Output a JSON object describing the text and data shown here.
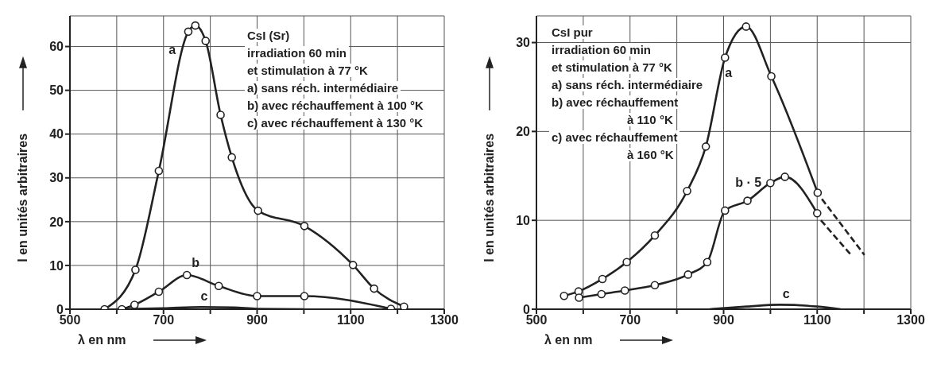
{
  "chart_data": [
    {
      "type": "line",
      "xlabel": "λ en nm",
      "ylabel": "I en unités arbitraires",
      "xlim": [
        500,
        1300
      ],
      "ylim": [
        0,
        67
      ],
      "xticks": [
        500,
        {
          "value": 600,
          "label": null
        },
        700,
        {
          "value": 800,
          "label": null
        },
        900,
        {
          "value": 1000,
          "label": null
        },
        1100,
        {
          "value": 1200,
          "label": null
        },
        1300
      ],
      "yticks": [
        0,
        10,
        20,
        30,
        40,
        50,
        60
      ],
      "grid": true,
      "legend": false,
      "series": [
        {
          "name": "a",
          "color": "#222222",
          "marker": "circle",
          "x": [
            574,
            640,
            690,
            753,
            768,
            790,
            822,
            846,
            902,
            1001,
            1105,
            1150,
            1214
          ],
          "values": [
            0,
            9.0,
            31.6,
            63.4,
            64.8,
            61.3,
            44.4,
            34.7,
            22.5,
            19.0,
            10.1,
            4.7,
            0.6
          ]
        },
        {
          "name": "b",
          "color": "#222222",
          "marker": "circle",
          "x": [
            611,
            638,
            690,
            750,
            818,
            900,
            1001,
            1186
          ],
          "values": [
            0,
            1.0,
            4.0,
            7.8,
            5.3,
            3.0,
            3.0,
            0.1
          ]
        },
        {
          "name": "c",
          "color": "#222222",
          "marker": "none",
          "x": [
            600,
            700,
            780,
            850,
            900,
            1000
          ],
          "values": [
            0,
            0.2,
            0.5,
            0.4,
            0.1,
            0
          ]
        }
      ],
      "annotations": [
        "CsI (Sr)",
        "irradiation 60 min",
        "et stimulation à 77 °K",
        "a) sans réch. intermédiaire",
        "b) avec réchauffement à 100 °K",
        "c) avec réchauffement à 130 °K"
      ]
    },
    {
      "type": "line",
      "xlabel": "λ en nm",
      "ylabel": "I en unités arbitraires",
      "xlim": [
        500,
        1300
      ],
      "ylim": [
        0,
        33
      ],
      "xticks": [
        500,
        {
          "value": 600,
          "label": null
        },
        700,
        {
          "value": 800,
          "label": null
        },
        900,
        {
          "value": 1000,
          "label": null
        },
        1100,
        {
          "value": 1200,
          "label": null
        },
        1300
      ],
      "yticks": [
        0,
        10,
        20,
        30
      ],
      "grid": true,
      "legend": false,
      "series": [
        {
          "name": "a",
          "color": "#222222",
          "marker": "circle",
          "x": [
            559,
            590,
            641,
            693,
            753,
            822,
            862,
            903,
            948,
            1002,
            1101
          ],
          "values": [
            1.5,
            2.0,
            3.4,
            5.3,
            8.3,
            13.3,
            18.3,
            28.3,
            31.8,
            26.2,
            13.1
          ]
        },
        {
          "color": "#222222",
          "marker": "none",
          "line_style": "dashed",
          "x": [
            1110,
            1201
          ],
          "values": [
            12.4,
            6.1
          ]
        },
        {
          "name": "b · 5",
          "color": "#222222",
          "marker": "circle",
          "x": [
            591,
            639,
            689,
            753,
            824,
            865,
            903,
            951,
            1000,
            1031,
            1100
          ],
          "values": [
            1.3,
            1.7,
            2.1,
            2.7,
            3.9,
            5.3,
            11.1,
            12.2,
            14.2,
            14.9,
            10.8
          ]
        },
        {
          "color": "#222222",
          "marker": "none",
          "line_style": "dashed",
          "x": [
            1108,
            1174
          ],
          "values": [
            10.0,
            6.0
          ]
        },
        {
          "name": "c",
          "color": "#222222",
          "marker": "none",
          "x": [
            870,
            950,
            1020,
            1100,
            1150
          ],
          "values": [
            0,
            0.3,
            0.5,
            0.3,
            0
          ]
        }
      ],
      "annotations": [
        "CsI pur",
        "irradiation 60 min",
        "et stimulation à 77 °K",
        "a) sans réch. intermédiaire",
        "b) avec réchauffement",
        "à 110 °K",
        "c) avec réchauffement",
        "à 160 °K"
      ]
    }
  ]
}
